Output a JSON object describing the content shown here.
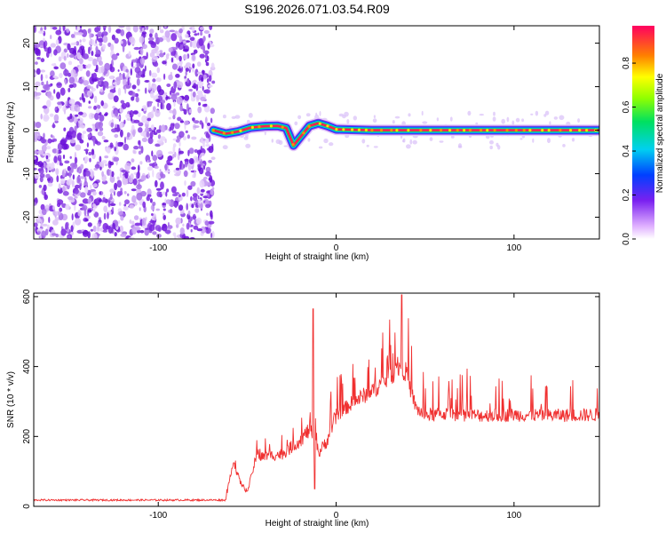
{
  "title": "S196.2026.071.03.54.R09",
  "chart_data": [
    {
      "type": "heatmap",
      "xlabel": "Height of straight line (km)",
      "ylabel": "Frequency (Hz)",
      "xlim": [
        -170,
        148
      ],
      "ylim": [
        -25,
        24
      ],
      "xticks": [
        -100,
        0,
        100
      ],
      "xtick_labels": [
        "-100",
        "0",
        "100"
      ],
      "yticks": [
        -20,
        -10,
        0,
        10,
        20
      ],
      "ytick_labels": [
        "-20",
        "-10",
        "0",
        "10",
        "20"
      ],
      "noise_region_end_km": -69,
      "ridge_start_km": -69,
      "ridge_points": [
        [
          -69,
          0.0
        ],
        [
          -62,
          -0.8
        ],
        [
          -55,
          -0.3
        ],
        [
          -48,
          0.6
        ],
        [
          -40,
          0.9
        ],
        [
          -33,
          1.0
        ],
        [
          -28,
          0.5
        ],
        [
          -24,
          -3.5
        ],
        [
          -20,
          -1.5
        ],
        [
          -15,
          1.0
        ],
        [
          -10,
          1.6
        ],
        [
          -5,
          1.0
        ],
        [
          0,
          0.2
        ],
        [
          20,
          0.0
        ],
        [
          60,
          0.0
        ],
        [
          90,
          0.0
        ],
        [
          120,
          0.0
        ],
        [
          148,
          0.0
        ]
      ],
      "colorbar": {
        "label": "Normalized spectral amplitude",
        "range": [
          0,
          0.97
        ],
        "ticks": [
          0.0,
          0.2,
          0.4,
          0.6,
          0.8
        ],
        "tick_labels": [
          "0.0",
          "0.2",
          "0.4",
          "0.6",
          "0.8"
        ]
      }
    },
    {
      "type": "line",
      "xlabel": "Height of straight line (km)",
      "ylabel": "SNR (10 * v/v)",
      "xlim": [
        -170,
        148
      ],
      "ylim": [
        0,
        610
      ],
      "xticks": [
        -100,
        0,
        100
      ],
      "xtick_labels": [
        "-100",
        "0",
        "100"
      ],
      "yticks": [
        0,
        200,
        400,
        600
      ],
      "ytick_labels": [
        "0",
        "200",
        "400",
        "600"
      ],
      "color": "#f03030",
      "baseline_points": [
        [
          -170,
          18
        ],
        [
          -62,
          18
        ],
        [
          -58,
          130
        ],
        [
          -54,
          70
        ],
        [
          -50,
          40
        ],
        [
          -45,
          140
        ],
        [
          -30,
          150
        ],
        [
          -20,
          190
        ],
        [
          -15,
          220
        ],
        [
          -13,
          200
        ],
        [
          -10,
          150
        ],
        [
          -5,
          190
        ],
        [
          0,
          260
        ],
        [
          10,
          300
        ],
        [
          20,
          330
        ],
        [
          30,
          370
        ],
        [
          36,
          400
        ],
        [
          40,
          380
        ],
        [
          42,
          330
        ],
        [
          45,
          280
        ],
        [
          50,
          260
        ],
        [
          60,
          265
        ],
        [
          80,
          260
        ],
        [
          100,
          262
        ],
        [
          120,
          260
        ],
        [
          148,
          262
        ]
      ],
      "spikes": [
        [
          -13,
          565
        ],
        [
          -12,
          50
        ],
        [
          37,
          605
        ]
      ]
    }
  ]
}
